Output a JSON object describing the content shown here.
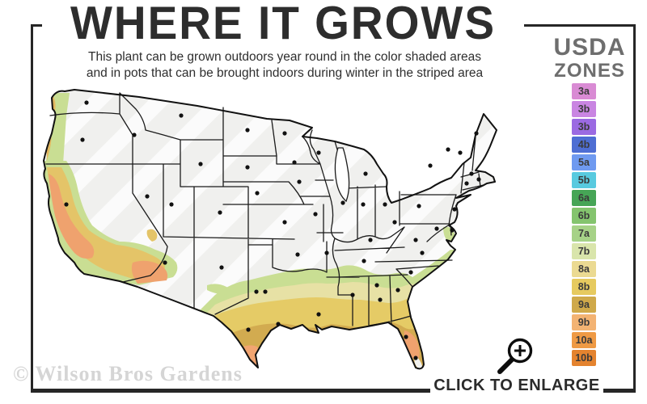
{
  "header": {
    "title": "WHERE IT GROWS",
    "subtitle_line1": "This plant can be grown outdoors year round in the color shaded areas",
    "subtitle_line2": "and in pots that can be brought indoors during winter in the striped area"
  },
  "legend": {
    "title_top": "USDA",
    "title_bottom": "ZONES",
    "zones": [
      {
        "label": "3a",
        "color": "#d98bd4"
      },
      {
        "label": "3b",
        "color": "#c985e2"
      },
      {
        "label": "3b",
        "color": "#9b6ae2"
      },
      {
        "label": "4b",
        "color": "#4e6ed3"
      },
      {
        "label": "5a",
        "color": "#6f9af0"
      },
      {
        "label": "5b",
        "color": "#58cadf"
      },
      {
        "label": "6a",
        "color": "#46a556"
      },
      {
        "label": "6b",
        "color": "#84c46e"
      },
      {
        "label": "7a",
        "color": "#a6d287"
      },
      {
        "label": "7b",
        "color": "#d9e5ab"
      },
      {
        "label": "8a",
        "color": "#ebda92"
      },
      {
        "label": "8b",
        "color": "#e6ca5f"
      },
      {
        "label": "9a",
        "color": "#cfa94a"
      },
      {
        "label": "9b",
        "color": "#f3b373"
      },
      {
        "label": "10a",
        "color": "#ef9a44"
      },
      {
        "label": "10b",
        "color": "#e4832f"
      }
    ]
  },
  "map": {
    "palette": {
      "base": "#f0f0ee",
      "green": "#c9de93",
      "pale": "#e7e1a5",
      "gold": "#e5cb66",
      "mustard": "#d2ab50",
      "salmon": "#efa26e",
      "peach": "#f2a571",
      "coast_gold": "#e2b75f",
      "inland_gold": "#e4c468",
      "tip_pale": "#f1f1ee",
      "line": "#1b1b1b"
    }
  },
  "footer": {
    "watermark": "© Wilson Bros Gardens",
    "enlarge_label": "CLICK TO ENLARGE"
  },
  "icons": {
    "enlarge": "magnifying-glass-plus"
  }
}
